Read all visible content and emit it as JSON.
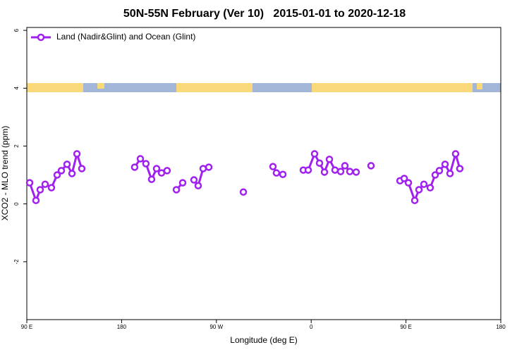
{
  "chart_data": {
    "type": "line",
    "title": "50N-55N February (Ver 10)   2015-01-01 to 2020-12-18",
    "x_label": "Longitude (deg E)",
    "y_label": "XCO2 - MLO trend (ppm)",
    "xlim": [
      90,
      540
    ],
    "xticks": [
      {
        "value": 90,
        "label": "90 E"
      },
      180,
      {
        "value": 270,
        "label": "90 W"
      },
      {
        "value": 360,
        "label": "0"
      },
      {
        "value": 450,
        "label": "90 E"
      },
      {
        "value": 540,
        "label": "180"
      }
    ],
    "ylim": [
      -4,
      6.1
    ],
    "yticks": [
      -2,
      0,
      2,
      4,
      6
    ],
    "grid": false,
    "legend": "top-left",
    "series": [
      {
        "name": "Land (Nadir&Glint) and Ocean (Glint)",
        "color": "#a020f0",
        "x": [
          92.7,
          98.7,
          102.7,
          107.4,
          113.4,
          118.8,
          122.8,
          128.2,
          132.9,
          137.6,
          142.2,
          null,
          192.4,
          197.8,
          203.1,
          208.5,
          213.2,
          217.9,
          223.2,
          null,
          232.0,
          238.0,
          null,
          248.7,
          252.7,
          257.4,
          262.8,
          null,
          295.6,
          null,
          323.7,
          327.0,
          333.1,
          null,
          352.5,
          357.2,
          363.2,
          367.9,
          372.6,
          377.3,
          382.6,
          388.0,
          392.0,
          396.7,
          402.7,
          null,
          416.8,
          null,
          444.3,
          448.3,
          452.3,
          458.3,
          462.3,
          467.0,
          473.0,
          477.7,
          481.7,
          487.1,
          491.8,
          497.1,
          501.1
        ],
        "values": [
          0.73,
          0.12,
          0.49,
          0.68,
          0.56,
          1.0,
          1.15,
          1.37,
          1.05,
          1.73,
          1.22,
          null,
          1.27,
          1.56,
          1.39,
          0.85,
          1.22,
          1.07,
          1.15,
          null,
          0.49,
          0.73,
          null,
          0.83,
          0.63,
          1.22,
          1.27,
          null,
          0.41,
          null,
          1.29,
          1.07,
          1.02,
          null,
          1.17,
          1.17,
          1.73,
          1.41,
          1.1,
          1.54,
          1.17,
          1.12,
          1.32,
          1.12,
          1.1,
          null,
          1.32,
          null,
          0.8,
          0.88,
          0.73,
          0.12,
          0.49,
          0.68,
          0.56,
          1.0,
          1.15,
          1.37,
          1.05,
          1.73,
          1.22
        ]
      }
    ]
  }
}
